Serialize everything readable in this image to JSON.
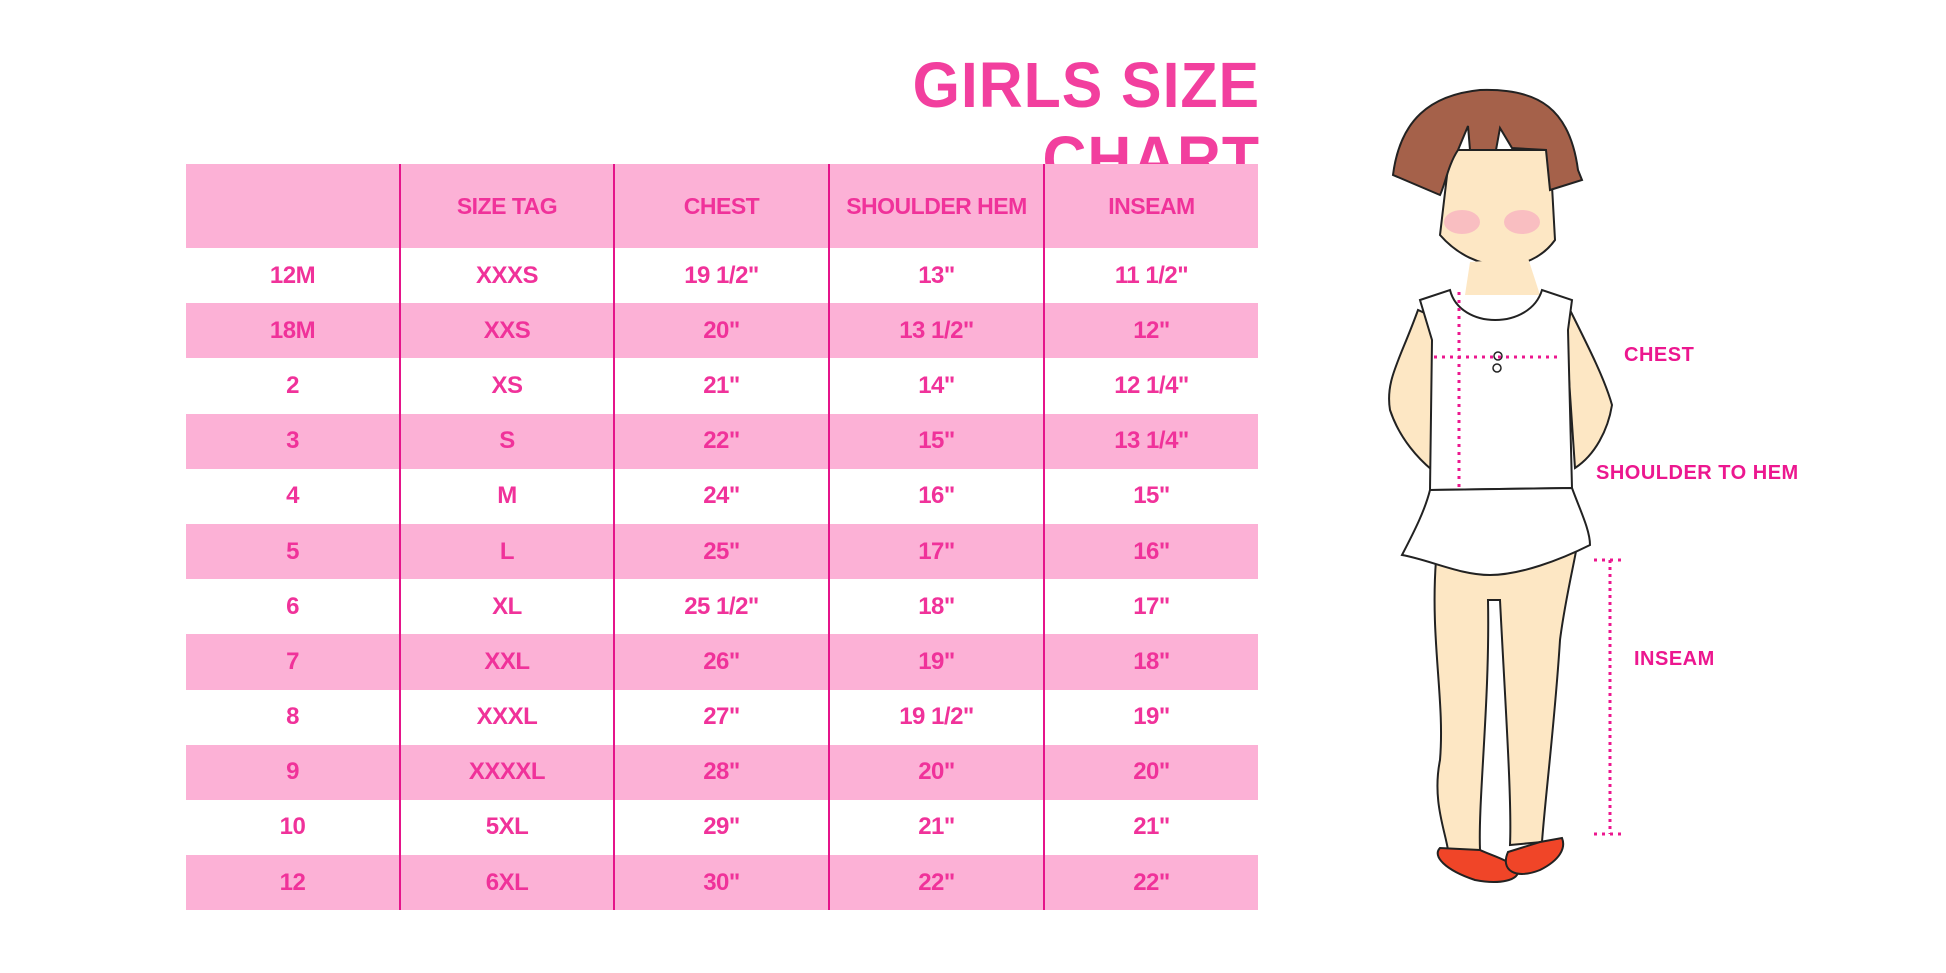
{
  "title": "GIRLS SIZE CHART",
  "colors": {
    "accent": "#f0329a",
    "header_bg": "#fcb1d6",
    "divider": "#e5148a"
  },
  "chart_data": {
    "type": "table",
    "title": "GIRLS SIZE CHART",
    "columns": [
      "",
      "SIZE TAG",
      "CHEST",
      "SHOULDER HEM",
      "INSEAM"
    ],
    "rows": [
      [
        "12M",
        "XXXS",
        "19 1/2\"",
        "13\"",
        "11 1/2\""
      ],
      [
        "18M",
        "XXS",
        "20\"",
        "13 1/2\"",
        "12\""
      ],
      [
        "2",
        "XS",
        "21\"",
        "14\"",
        "12 1/4\""
      ],
      [
        "3",
        "S",
        "22\"",
        "15\"",
        "13 1/4\""
      ],
      [
        "4",
        "M",
        "24\"",
        "16\"",
        "15\""
      ],
      [
        "5",
        "L",
        "25\"",
        "17\"",
        "16\""
      ],
      [
        "6",
        "XL",
        "25 1/2\"",
        "18\"",
        "17\""
      ],
      [
        "7",
        "XXL",
        "26\"",
        "19\"",
        "18\""
      ],
      [
        "8",
        "XXXL",
        "27\"",
        "19 1/2\"",
        "19\""
      ],
      [
        "9",
        "XXXXL",
        "28\"",
        "20\"",
        "20\""
      ],
      [
        "10",
        "5XL",
        "29\"",
        "21\"",
        "21\""
      ],
      [
        "12",
        "6XL",
        "30\"",
        "22\"",
        "22\""
      ]
    ]
  },
  "figure": {
    "labels": {
      "chest": "CHEST",
      "shoulder_to_hem": "SHOULDER TO HEM",
      "inseam": "INSEAM"
    }
  }
}
